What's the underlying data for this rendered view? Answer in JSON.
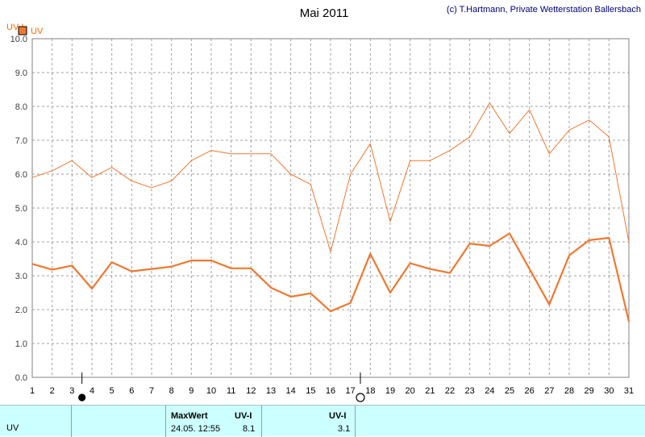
{
  "title": "Mai 2011",
  "credit": "(c) T.Hartmann, Private Wetterstation Ballersbach",
  "y_unit": "UV-I",
  "legend_label": "UV",
  "colors": {
    "series": "#f07830",
    "legend_box": "#f07830",
    "axis_text": "#ff6600",
    "credit": "#000080",
    "footer_bg": "#ccffff"
  },
  "moon_symbols": [
    {
      "name": "new-moon-icon",
      "day": 3.5
    },
    {
      "name": "full-moon-icon",
      "day": 17.5
    }
  ],
  "chart_data": {
    "type": "line",
    "title": "Mai 2011",
    "ylabel": "UV-I",
    "xlabel": "",
    "ylim": [
      0,
      10
    ],
    "yticks": [
      "0.0",
      "1.0",
      "2.0",
      "3.0",
      "4.0",
      "5.0",
      "6.0",
      "7.0",
      "8.0",
      "9.0",
      "10.0"
    ],
    "x": [
      1,
      2,
      3,
      4,
      5,
      6,
      7,
      8,
      9,
      10,
      11,
      12,
      13,
      14,
      15,
      16,
      17,
      18,
      19,
      20,
      21,
      22,
      23,
      24,
      25,
      26,
      27,
      28,
      29,
      30,
      31
    ],
    "grid": true,
    "legend": "top-left",
    "series": [
      {
        "name": "UV",
        "role": "daily maximum",
        "values": [
          5.9,
          6.1,
          6.4,
          5.9,
          6.2,
          5.8,
          5.6,
          5.8,
          6.4,
          6.7,
          6.6,
          6.6,
          6.6,
          6.0,
          5.7,
          3.7,
          6.0,
          6.9,
          4.6,
          6.4,
          6.4,
          6.7,
          7.1,
          8.1,
          7.2,
          7.9,
          6.6,
          7.3,
          7.6,
          7.1,
          4.0
        ]
      },
      {
        "name": "UV",
        "role": "daily mean",
        "values": [
          3.35,
          3.18,
          3.3,
          2.62,
          3.4,
          3.13,
          3.2,
          3.27,
          3.45,
          3.45,
          3.22,
          3.22,
          2.65,
          2.38,
          2.48,
          1.95,
          2.2,
          3.65,
          2.5,
          3.37,
          3.2,
          3.08,
          3.95,
          3.88,
          4.25,
          3.2,
          2.15,
          3.6,
          4.05,
          4.12,
          1.65
        ]
      }
    ]
  },
  "footer": {
    "row_label": "UV",
    "max_header": "MaxWert",
    "max_unit": "UV-I",
    "max_datetime": "24.05.  12:55",
    "max_value": "8.1",
    "mean_unit": "UV-I",
    "mean_value": "3.1"
  }
}
